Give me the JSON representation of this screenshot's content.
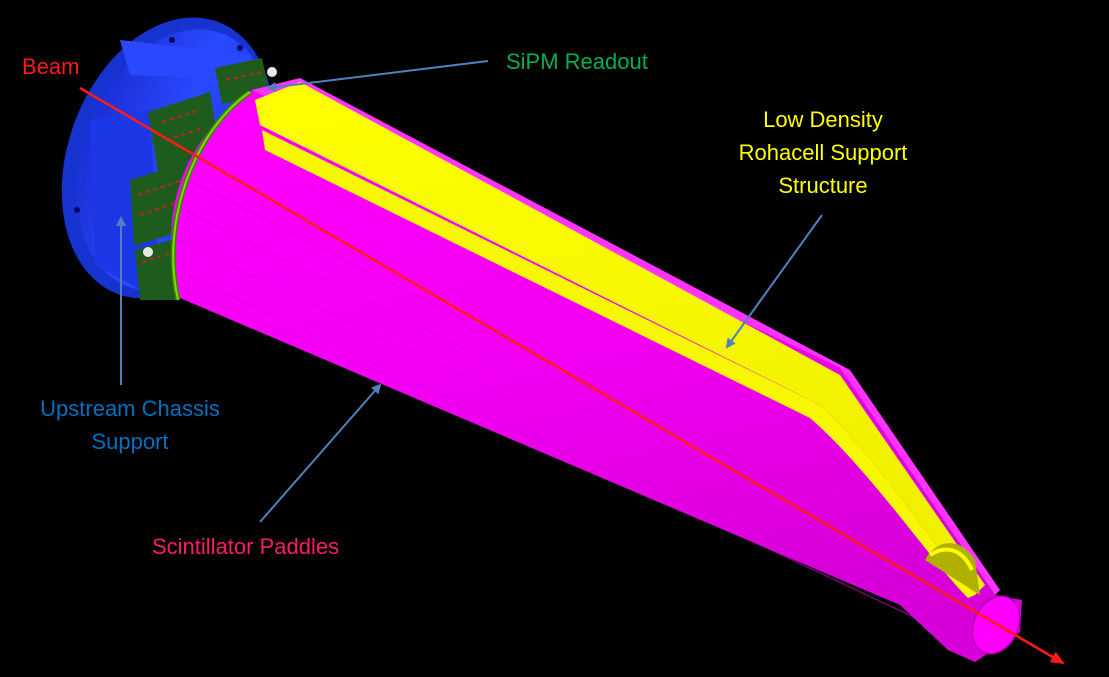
{
  "labels": {
    "beam": "Beam",
    "sipm": "SiPM Readout",
    "rohacell": [
      "Low Density",
      "Rohacell Support",
      "Structure"
    ],
    "chassis": [
      "Upstream Chassis",
      "Support"
    ],
    "paddles": "Scintillator Paddles"
  },
  "colors": {
    "background": "#000000",
    "beam": "#ff1a1a",
    "sipm_label": "#00b050",
    "rohacell_label": "#ffff00",
    "chassis_label": "#0070c0",
    "paddles_label": "#ff1a6e",
    "arrow": "#4f81bd",
    "paddle_body": "#ff00ff",
    "rohacell_body": "#ffff00",
    "chassis_body": "#1f3fff",
    "sipm_board": "#1e5c1e"
  }
}
